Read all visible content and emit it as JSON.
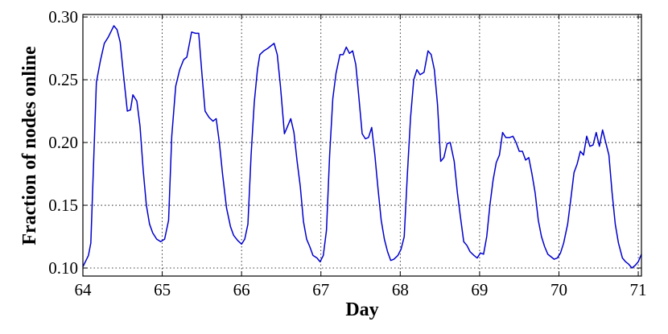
{
  "chart_data": {
    "type": "line",
    "xlabel": "Day",
    "ylabel": "Fraction of nodes online",
    "xlim": [
      64,
      71.04
    ],
    "ylim": [
      0.0936,
      0.302
    ],
    "xticks": [
      64,
      65,
      66,
      67,
      68,
      69,
      70,
      71
    ],
    "yticks": [
      {
        "value": 0.1,
        "label": "0.10"
      },
      0.15,
      {
        "value": 0.2,
        "label": "0.20"
      },
      0.25,
      {
        "value": 0.3,
        "label": "0.30"
      }
    ],
    "grid": true,
    "x": [
      64.0,
      64.07,
      64.1,
      64.17,
      64.22,
      64.27,
      64.32,
      64.39,
      64.43,
      64.47,
      64.51,
      64.56,
      64.6,
      64.63,
      64.68,
      64.72,
      64.76,
      64.8,
      64.84,
      64.88,
      64.93,
      64.98,
      65.03,
      65.08,
      65.12,
      65.17,
      65.22,
      65.27,
      65.31,
      65.37,
      65.42,
      65.46,
      65.5,
      65.54,
      65.59,
      65.64,
      65.68,
      65.72,
      65.76,
      65.81,
      65.86,
      65.9,
      65.95,
      66.0,
      66.04,
      66.08,
      66.12,
      66.16,
      66.2,
      66.23,
      66.28,
      66.33,
      66.37,
      66.41,
      66.45,
      66.49,
      66.54,
      66.58,
      66.62,
      66.66,
      66.7,
      66.74,
      66.78,
      66.82,
      66.86,
      66.9,
      66.95,
      66.99,
      67.03,
      67.07,
      67.11,
      67.15,
      67.19,
      67.24,
      67.28,
      67.32,
      67.36,
      67.4,
      67.44,
      67.48,
      67.52,
      67.56,
      67.6,
      67.64,
      67.68,
      67.72,
      67.76,
      67.8,
      67.84,
      67.88,
      67.92,
      67.97,
      68.01,
      68.05,
      68.09,
      68.13,
      68.17,
      68.21,
      68.25,
      68.3,
      68.35,
      68.39,
      68.43,
      68.47,
      68.51,
      68.55,
      68.59,
      68.63,
      68.68,
      68.72,
      68.76,
      68.8,
      68.84,
      68.88,
      68.93,
      68.97,
      69.01,
      69.05,
      69.09,
      69.13,
      69.17,
      69.21,
      69.25,
      69.29,
      69.33,
      69.38,
      69.42,
      69.46,
      69.5,
      69.54,
      69.58,
      69.62,
      69.66,
      69.7,
      69.74,
      69.78,
      69.82,
      69.86,
      69.9,
      69.94,
      69.98,
      70.02,
      70.06,
      70.11,
      70.15,
      70.19,
      70.23,
      70.27,
      70.31,
      70.35,
      70.39,
      70.43,
      70.47,
      70.51,
      70.55,
      70.59,
      70.63,
      70.67,
      70.71,
      70.75,
      70.8,
      70.84,
      70.88,
      70.92,
      70.96,
      71.0,
      71.04
    ],
    "series": [
      {
        "color": "#0000cc",
        "values": [
          0.101,
          0.11,
          0.12,
          0.248,
          0.265,
          0.279,
          0.284,
          0.293,
          0.29,
          0.28,
          0.255,
          0.225,
          0.226,
          0.238,
          0.233,
          0.213,
          0.178,
          0.15,
          0.135,
          0.128,
          0.123,
          0.121,
          0.123,
          0.138,
          0.205,
          0.245,
          0.258,
          0.266,
          0.268,
          0.288,
          0.287,
          0.287,
          0.255,
          0.225,
          0.22,
          0.217,
          0.219,
          0.2,
          0.175,
          0.148,
          0.133,
          0.126,
          0.122,
          0.119,
          0.123,
          0.135,
          0.19,
          0.232,
          0.258,
          0.27,
          0.273,
          0.275,
          0.277,
          0.279,
          0.27,
          0.245,
          0.207,
          0.213,
          0.219,
          0.208,
          0.185,
          0.165,
          0.137,
          0.123,
          0.117,
          0.11,
          0.108,
          0.105,
          0.11,
          0.13,
          0.19,
          0.235,
          0.255,
          0.27,
          0.27,
          0.276,
          0.271,
          0.273,
          0.262,
          0.235,
          0.207,
          0.203,
          0.204,
          0.212,
          0.19,
          0.163,
          0.138,
          0.123,
          0.113,
          0.106,
          0.107,
          0.11,
          0.115,
          0.125,
          0.175,
          0.22,
          0.25,
          0.258,
          0.254,
          0.256,
          0.273,
          0.27,
          0.258,
          0.23,
          0.185,
          0.188,
          0.199,
          0.2,
          0.185,
          0.16,
          0.14,
          0.121,
          0.118,
          0.113,
          0.11,
          0.108,
          0.112,
          0.111,
          0.125,
          0.15,
          0.17,
          0.184,
          0.19,
          0.208,
          0.204,
          0.204,
          0.205,
          0.2,
          0.193,
          0.193,
          0.186,
          0.188,
          0.175,
          0.16,
          0.138,
          0.125,
          0.117,
          0.111,
          0.109,
          0.107,
          0.108,
          0.112,
          0.12,
          0.135,
          0.155,
          0.176,
          0.183,
          0.193,
          0.19,
          0.205,
          0.197,
          0.198,
          0.208,
          0.197,
          0.21,
          0.2,
          0.19,
          0.16,
          0.135,
          0.12,
          0.108,
          0.105,
          0.103,
          0.1,
          0.102,
          0.105,
          0.111
        ]
      }
    ]
  }
}
